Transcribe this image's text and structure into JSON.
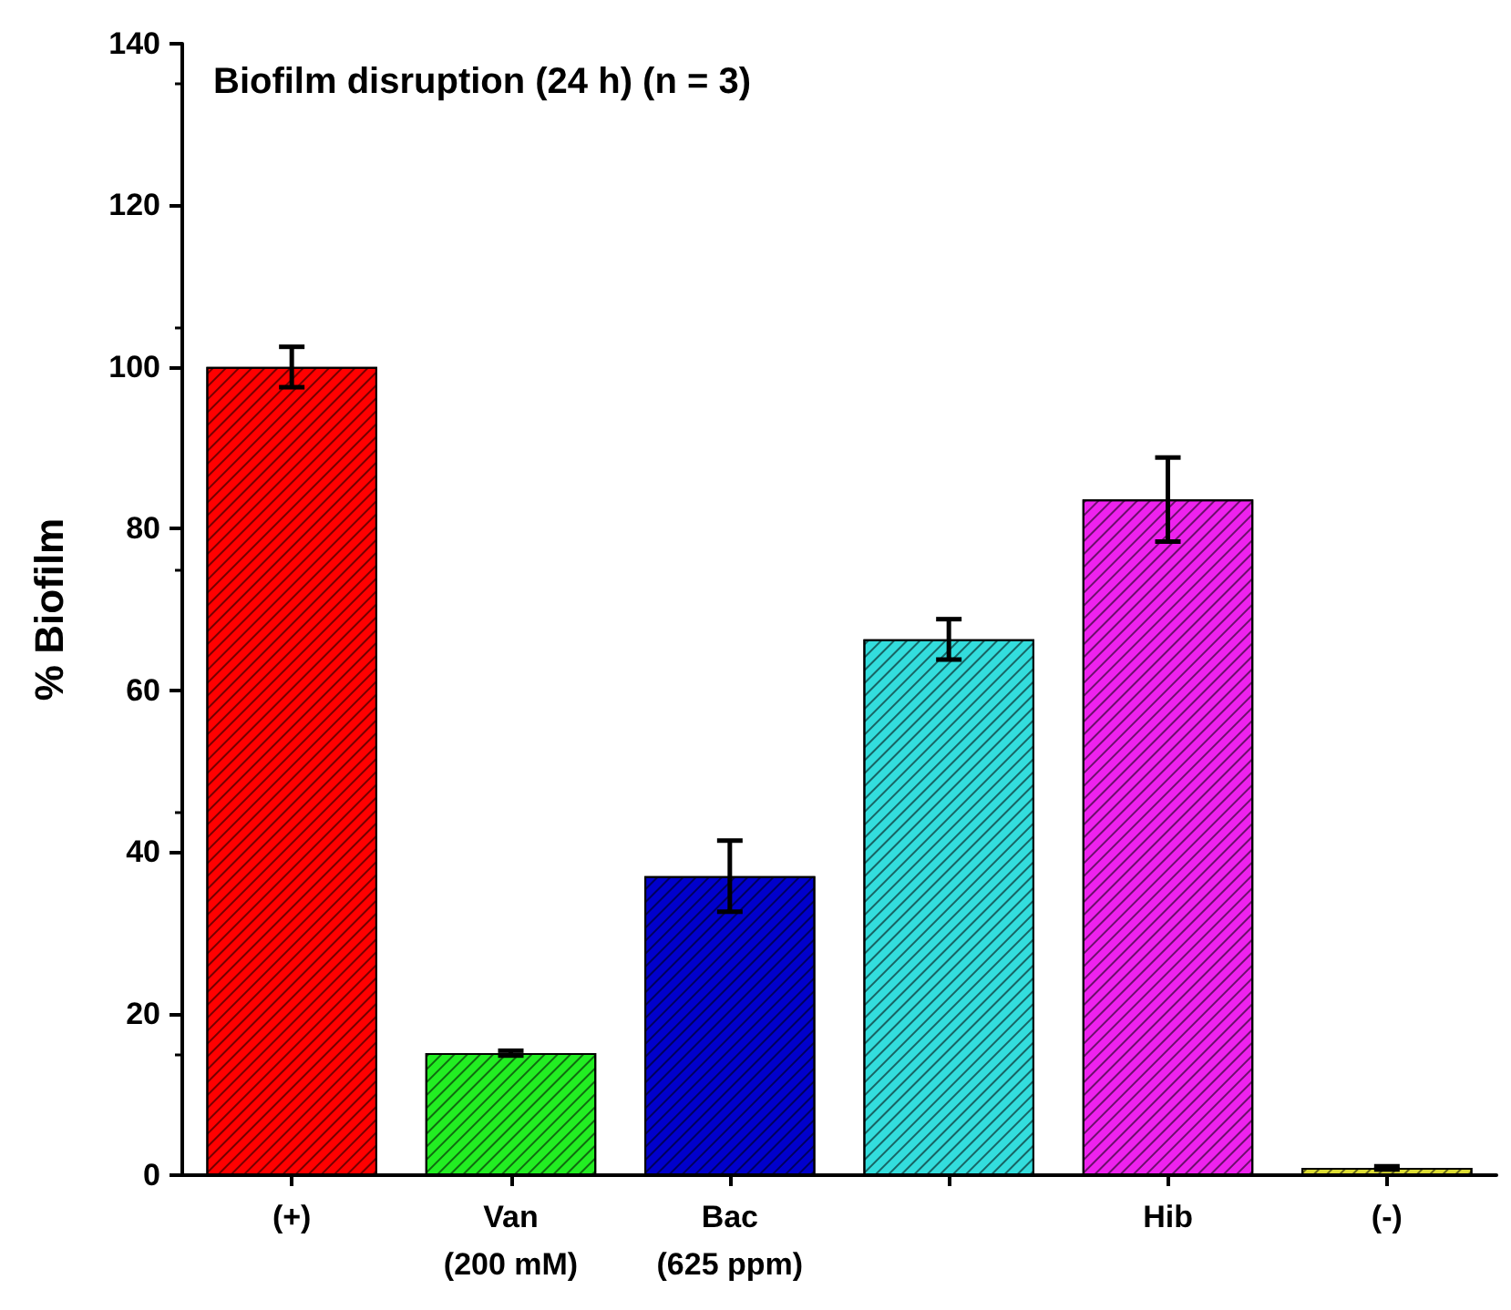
{
  "chart_data": {
    "type": "bar",
    "title": "Biofilm disruption (24 h) (n = 3)",
    "ylabel": "% Biofilm",
    "categories": [
      "(+)",
      "Van\n(200 mM)",
      "Bac\n(625 ppm)",
      null,
      "Hib",
      "(-)"
    ],
    "values": [
      100,
      15.1,
      37,
      66.3,
      83.6,
      0.9
    ],
    "errors": [
      2.5,
      0.3,
      4.4,
      2.5,
      5.2,
      0.2
    ],
    "colors": [
      "#ff0000",
      "#22ee22",
      "#0000cc",
      "#33dddd",
      "#ee22ee",
      "#dddd33"
    ],
    "ylim": [
      0,
      140
    ],
    "yticks": [
      0,
      20,
      40,
      60,
      80,
      100,
      120,
      140
    ]
  }
}
